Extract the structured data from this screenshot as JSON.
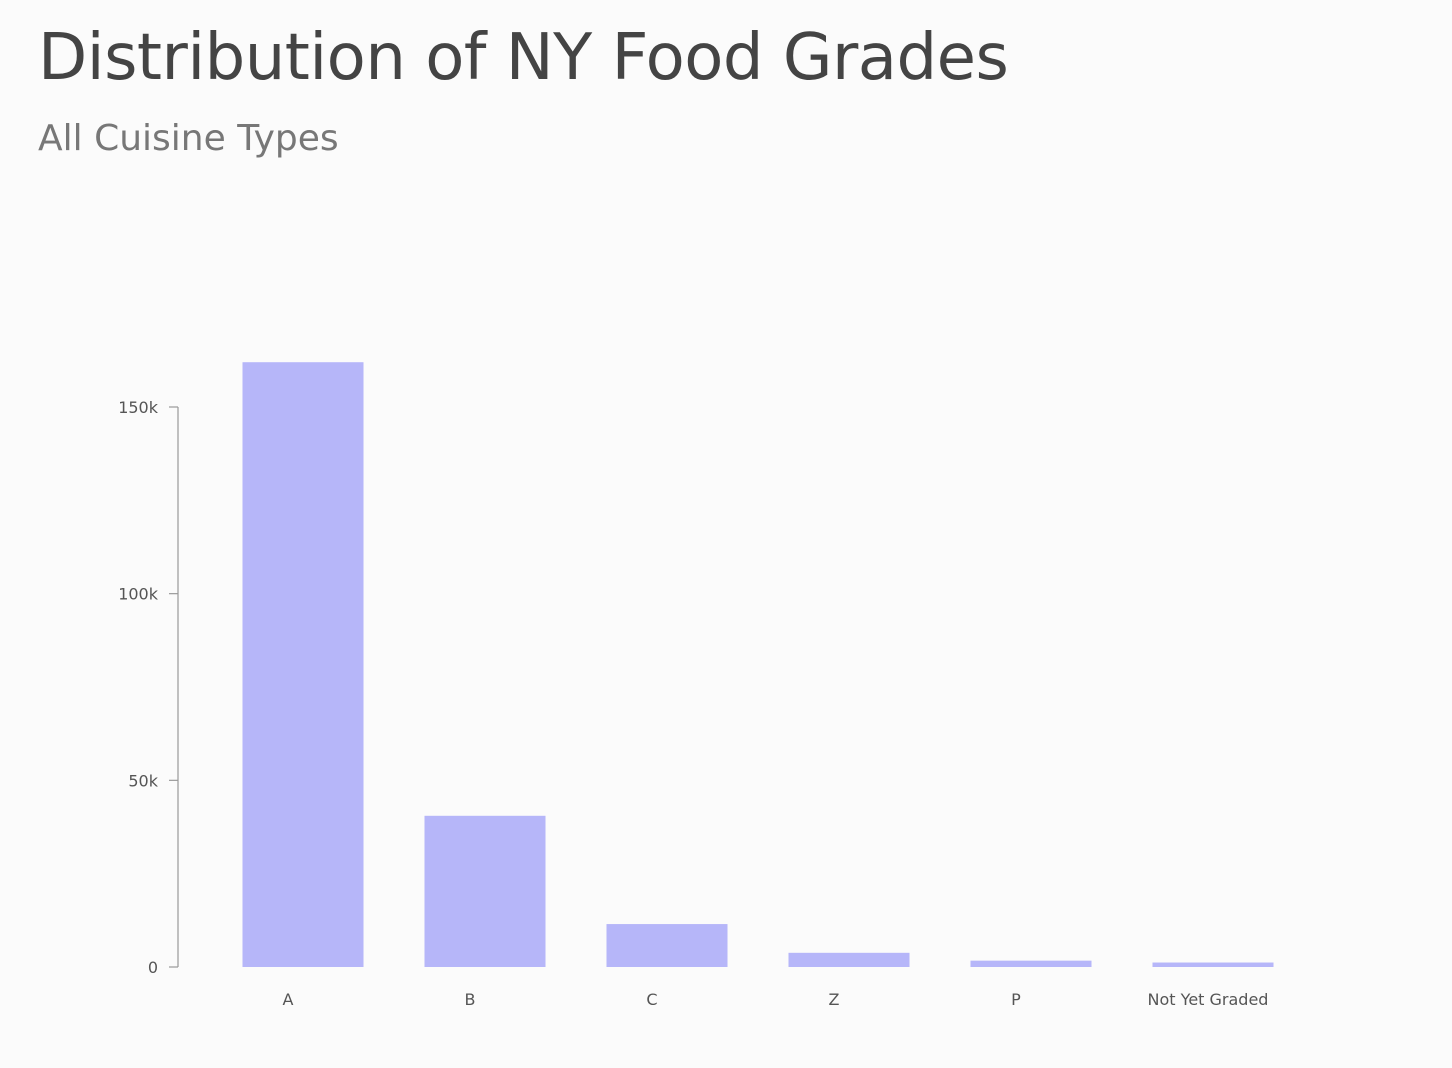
{
  "header": {
    "title": "Distribution of NY Food Grades",
    "subtitle": "All Cuisine Types"
  },
  "colors": {
    "bar": "#b6b6f9",
    "axis": "#999999",
    "tick_text": "#555555"
  },
  "chart_data": {
    "type": "bar",
    "title": "Distribution of NY Food Grades",
    "subtitle": "All Cuisine Types",
    "xlabel": "",
    "ylabel": "",
    "categories": [
      "A",
      "B",
      "C",
      "Z",
      "P",
      "Not Yet Graded"
    ],
    "values": [
      162000,
      40500,
      11500,
      3800,
      1700,
      1200
    ],
    "ylim": [
      0,
      150000
    ],
    "yticks": [
      0,
      50000,
      100000,
      150000
    ],
    "ytick_labels": [
      "0",
      "50k",
      "100k",
      "150k"
    ],
    "grid": false,
    "legend": "none"
  }
}
